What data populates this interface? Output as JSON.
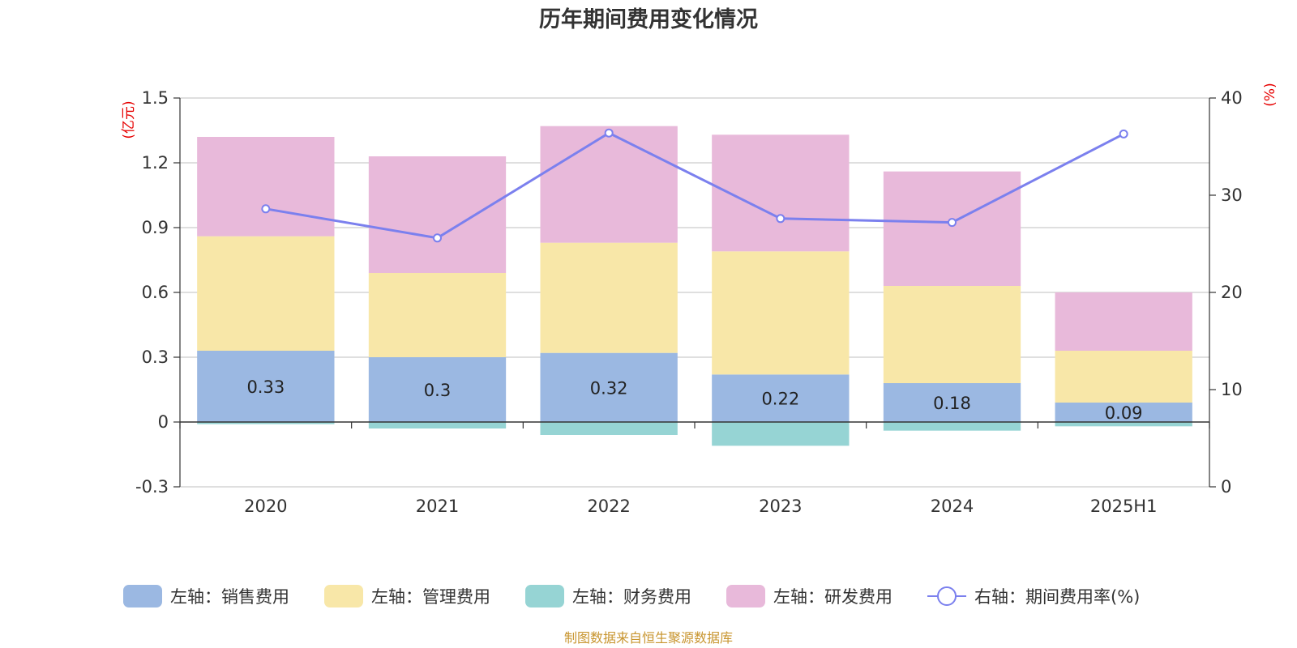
{
  "chart_data": {
    "type": "bar",
    "title": "历年期间费用变化情况",
    "categories": [
      "2020",
      "2021",
      "2022",
      "2023",
      "2024",
      "2025H1"
    ],
    "left_axis": {
      "unit": "(亿元)",
      "ylim": [
        -0.3,
        1.5
      ],
      "ticks": [
        "-0.3",
        "0",
        "0.3",
        "0.6",
        "0.9",
        "1.2",
        "1.5"
      ]
    },
    "right_axis": {
      "unit": "(%)",
      "ylim": [
        0,
        40
      ],
      "ticks": [
        "0",
        "10",
        "20",
        "30",
        "40"
      ]
    },
    "stacked": true,
    "series": [
      {
        "name": "左轴：销售费用",
        "type": "bar",
        "axis": "left",
        "color": "#9bb8e2",
        "values": [
          0.33,
          0.3,
          0.32,
          0.22,
          0.18,
          0.09
        ],
        "labels": [
          "0.33",
          "0.3",
          "0.32",
          "0.22",
          "0.18",
          "0.09"
        ]
      },
      {
        "name": "左轴：管理费用",
        "type": "bar",
        "axis": "left",
        "color": "#f8e7a8",
        "values": [
          0.53,
          0.39,
          0.51,
          0.57,
          0.45,
          0.24
        ]
      },
      {
        "name": "左轴：财务费用",
        "type": "bar",
        "axis": "left",
        "color": "#96d4d4",
        "values": [
          -0.01,
          -0.03,
          -0.06,
          -0.11,
          -0.04,
          -0.02
        ]
      },
      {
        "name": "左轴：研发费用",
        "type": "bar",
        "axis": "left",
        "color": "#e8b9da",
        "values": [
          0.46,
          0.54,
          0.54,
          0.54,
          0.53,
          0.27
        ]
      },
      {
        "name": "右轴：期间费用率(%)",
        "type": "line",
        "axis": "right",
        "color": "#7b80ee",
        "values": [
          28.6,
          25.6,
          36.4,
          27.6,
          27.2,
          36.3
        ]
      }
    ],
    "grid": true,
    "legend_position": "bottom"
  },
  "source": "制图数据来自恒生聚源数据库"
}
